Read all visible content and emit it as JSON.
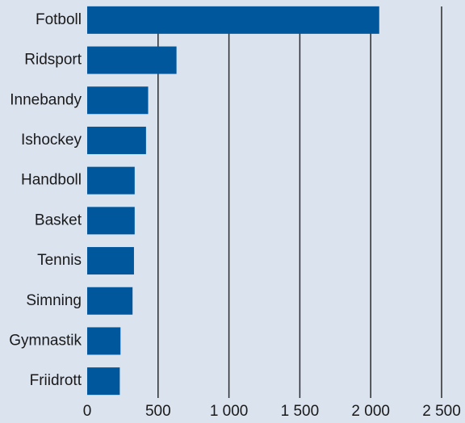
{
  "chart_data": {
    "type": "barh",
    "categories": [
      "Fotboll",
      "Ridsport",
      "Innebandy",
      "Ishockey",
      "Handboll",
      "Basket",
      "Tennis",
      "Simning",
      "Gymnastik",
      "Friidrott"
    ],
    "values": [
      2060,
      630,
      430,
      415,
      335,
      335,
      330,
      320,
      235,
      230
    ],
    "color": "#00579c",
    "xlim": [
      0,
      2500
    ],
    "xticks": [
      0,
      500,
      {
        "value": 1000,
        "label": "1 000"
      },
      {
        "value": 1500,
        "label": "1 500"
      },
      {
        "value": 2000,
        "label": "2 000"
      },
      {
        "value": 2500,
        "label": "2 500"
      }
    ],
    "grid": true
  }
}
